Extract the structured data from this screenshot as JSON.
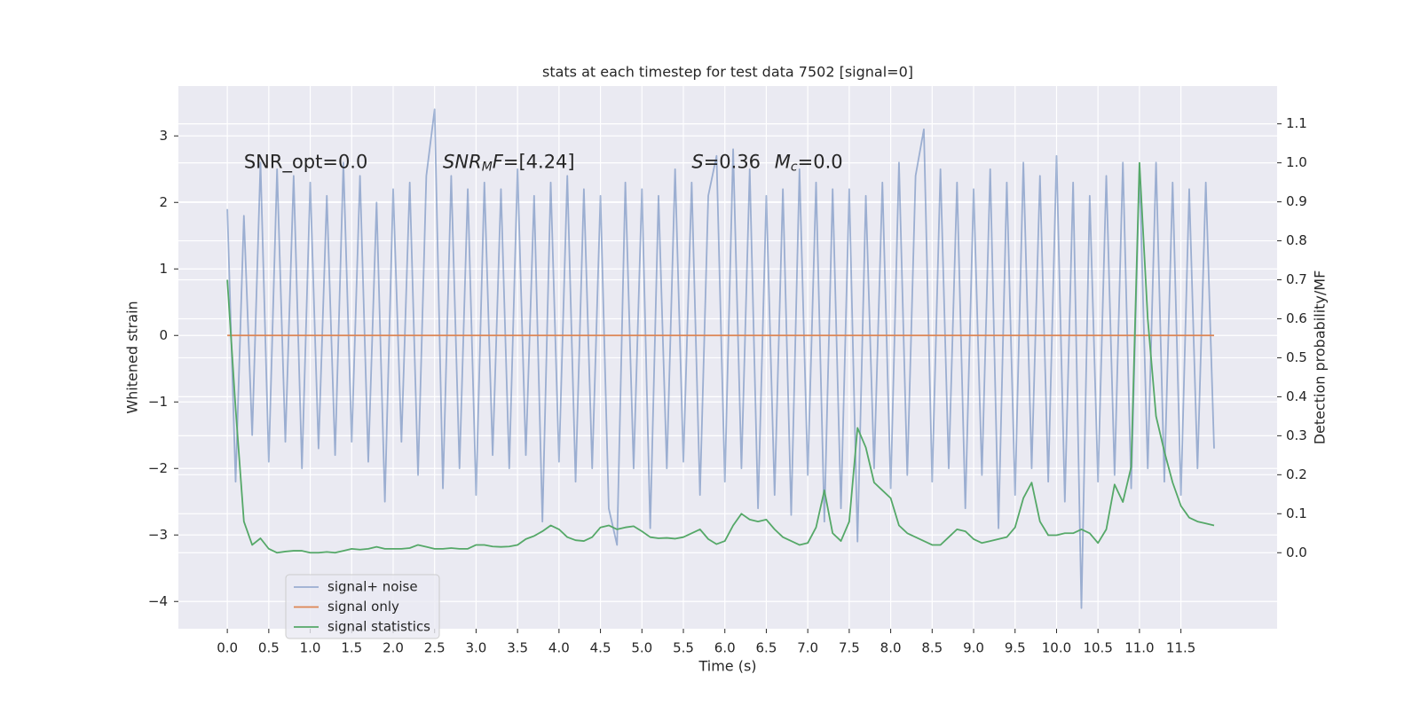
{
  "chart_data": {
    "type": "line",
    "title": "stats at each timestep for test data 7502 [signal=0]",
    "xlabel": "Time (s)",
    "ylabel": "Whitened strain",
    "y2label": "Detection probability/MF",
    "annotations": [
      [
        {
          "text": "SNR_opt=0.0"
        }
      ],
      [
        {
          "text": "SNR",
          "italic": true
        },
        {
          "text": "M",
          "italic": true,
          "sub": true
        },
        {
          "text": "F",
          "italic": true
        },
        {
          "text": "=[4.24]"
        }
      ],
      [
        {
          "text": "S",
          "italic": true
        },
        {
          "text": "=0.36"
        }
      ],
      [
        {
          "text": "M",
          "italic": true
        },
        {
          "text": "c",
          "italic": true,
          "sub": true
        },
        {
          "text": "=0.0"
        }
      ]
    ],
    "x": [
      0.0,
      0.1,
      0.2,
      0.3,
      0.4,
      0.5,
      0.6,
      0.7,
      0.8,
      0.9,
      1.0,
      1.1,
      1.2,
      1.3,
      1.4,
      1.5,
      1.6,
      1.7,
      1.8,
      1.9,
      2.0,
      2.1,
      2.2,
      2.3,
      2.4,
      2.5,
      2.6,
      2.7,
      2.8,
      2.9,
      3.0,
      3.1,
      3.2,
      3.3,
      3.4,
      3.5,
      3.6,
      3.7,
      3.8,
      3.9,
      4.0,
      4.1,
      4.2,
      4.3,
      4.4,
      4.5,
      4.6,
      4.7,
      4.8,
      4.9,
      5.0,
      5.1,
      5.2,
      5.3,
      5.4,
      5.5,
      5.6,
      5.7,
      5.8,
      5.9,
      6.0,
      6.1,
      6.2,
      6.3,
      6.4,
      6.5,
      6.6,
      6.7,
      6.8,
      6.9,
      7.0,
      7.1,
      7.2,
      7.3,
      7.4,
      7.5,
      7.6,
      7.7,
      7.8,
      7.9,
      8.0,
      8.1,
      8.2,
      8.3,
      8.4,
      8.5,
      8.6,
      8.7,
      8.8,
      8.9,
      9.0,
      9.1,
      9.2,
      9.3,
      9.4,
      9.5,
      9.6,
      9.7,
      9.8,
      9.9,
      10.0,
      10.1,
      10.2,
      10.3,
      10.4,
      10.5,
      10.6,
      10.7,
      10.8,
      10.9,
      11.0,
      11.1,
      11.2,
      11.3,
      11.4,
      11.5,
      11.6,
      11.7,
      11.8,
      11.9
    ],
    "series": [
      {
        "name": "signal+ noise",
        "color": "#4c72b0",
        "opacity": 0.5,
        "values": [
          1.9,
          -2.2,
          1.8,
          -1.5,
          2.6,
          -1.9,
          2.5,
          -1.6,
          2.4,
          -2.0,
          2.3,
          -1.7,
          2.1,
          -1.8,
          2.6,
          -1.6,
          2.4,
          -1.9,
          2.0,
          -2.5,
          2.2,
          -1.6,
          2.3,
          -2.1,
          2.4,
          3.4,
          -2.3,
          2.4,
          -2.0,
          2.2,
          -2.4,
          2.3,
          -1.8,
          2.2,
          -2.0,
          2.5,
          -1.8,
          2.1,
          -2.8,
          2.3,
          -1.9,
          2.4,
          -2.2,
          2.2,
          -2.0,
          2.1,
          -2.6,
          -3.15,
          2.3,
          -2.0,
          2.2,
          -2.9,
          2.1,
          -2.0,
          2.5,
          -1.9,
          2.3,
          -2.4,
          2.1,
          2.7,
          -2.2,
          2.8,
          -2.0,
          2.5,
          -2.6,
          2.1,
          -2.4,
          2.2,
          -2.7,
          2.5,
          -2.1,
          2.3,
          -2.8,
          2.2,
          -2.6,
          2.2,
          -3.1,
          2.1,
          -2.0,
          2.3,
          -2.3,
          2.6,
          -2.1,
          2.4,
          3.1,
          -2.2,
          2.5,
          -2.0,
          2.3,
          -2.6,
          2.2,
          -2.1,
          2.5,
          -2.9,
          2.3,
          -2.4,
          2.6,
          -2.0,
          2.4,
          -2.2,
          2.7,
          -2.5,
          2.3,
          -4.1,
          2.1,
          -2.2,
          2.4,
          -2.1,
          2.6,
          -2.3,
          2.5,
          -2.0,
          2.6,
          -2.2,
          2.3,
          -2.4,
          2.2,
          -2.0,
          2.3,
          -1.7
        ]
      },
      {
        "name": "signal only",
        "color": "#dd8452",
        "x": [
          0.0,
          11.9
        ],
        "values": [
          0,
          0
        ]
      },
      {
        "name": "signal statistics",
        "color": "#55a868",
        "axis": "y2",
        "values": [
          0.7,
          0.37,
          0.08,
          0.02,
          0.037,
          0.01,
          0.0,
          0.003,
          0.005,
          0.005,
          0.0,
          0.0,
          0.002,
          0.0,
          0.005,
          0.01,
          0.008,
          0.01,
          0.015,
          0.01,
          0.01,
          0.01,
          0.012,
          0.02,
          0.015,
          0.01,
          0.01,
          0.012,
          0.01,
          0.01,
          0.02,
          0.02,
          0.016,
          0.015,
          0.016,
          0.02,
          0.035,
          0.043,
          0.055,
          0.07,
          0.06,
          0.04,
          0.032,
          0.03,
          0.04,
          0.065,
          0.07,
          0.06,
          0.065,
          0.068,
          0.055,
          0.04,
          0.037,
          0.038,
          0.036,
          0.04,
          0.05,
          0.06,
          0.035,
          0.022,
          0.03,
          0.07,
          0.1,
          0.085,
          0.08,
          0.085,
          0.06,
          0.04,
          0.03,
          0.02,
          0.025,
          0.065,
          0.16,
          0.05,
          0.03,
          0.08,
          0.32,
          0.27,
          0.18,
          0.16,
          0.14,
          0.07,
          0.05,
          0.04,
          0.03,
          0.02,
          0.02,
          0.04,
          0.06,
          0.055,
          0.035,
          0.025,
          0.03,
          0.035,
          0.04,
          0.065,
          0.14,
          0.18,
          0.08,
          0.045,
          0.045,
          0.05,
          0.05,
          0.06,
          0.05,
          0.025,
          0.06,
          0.175,
          0.13,
          0.22,
          1.0,
          0.6,
          0.35,
          0.26,
          0.18,
          0.12,
          0.09,
          0.08,
          0.075,
          0.07
        ]
      }
    ],
    "xlim": [
      -0.59,
      12.66
    ],
    "ylim": [
      -4.41,
      3.75
    ],
    "y2lim": [
      -0.195,
      1.197
    ],
    "xticks": [
      {
        "value": 0,
        "label": "0.0"
      },
      0.5,
      {
        "value": 1,
        "label": "1.0"
      },
      1.5,
      {
        "value": 2,
        "label": "2.0"
      },
      2.5,
      {
        "value": 3,
        "label": "3.0"
      },
      3.5,
      {
        "value": 4,
        "label": "4.0"
      },
      4.5,
      {
        "value": 5,
        "label": "5.0"
      },
      5.5,
      {
        "value": 6,
        "label": "6.0"
      },
      6.5,
      {
        "value": 7,
        "label": "7.0"
      },
      7.5,
      {
        "value": 8,
        "label": "8.0"
      },
      8.5,
      {
        "value": 9,
        "label": "9.0"
      },
      9.5,
      {
        "value": 10,
        "label": "10.0"
      },
      10.5,
      {
        "value": 11,
        "label": "11.0"
      },
      11.5
    ],
    "yticks": [
      {
        "value": -4,
        "label": "−4"
      },
      {
        "value": -3,
        "label": "−3"
      },
      {
        "value": -2,
        "label": "−2"
      },
      {
        "value": -1,
        "label": "−1"
      },
      0,
      1,
      2,
      3
    ],
    "y2ticks": [
      {
        "value": 0,
        "label": "0.0"
      },
      0.1,
      0.2,
      0.3,
      0.4,
      0.5,
      0.6,
      0.7,
      0.8,
      0.9,
      {
        "value": 1,
        "label": "1.0"
      },
      1.1
    ],
    "grid": true,
    "legend": "lower left"
  }
}
